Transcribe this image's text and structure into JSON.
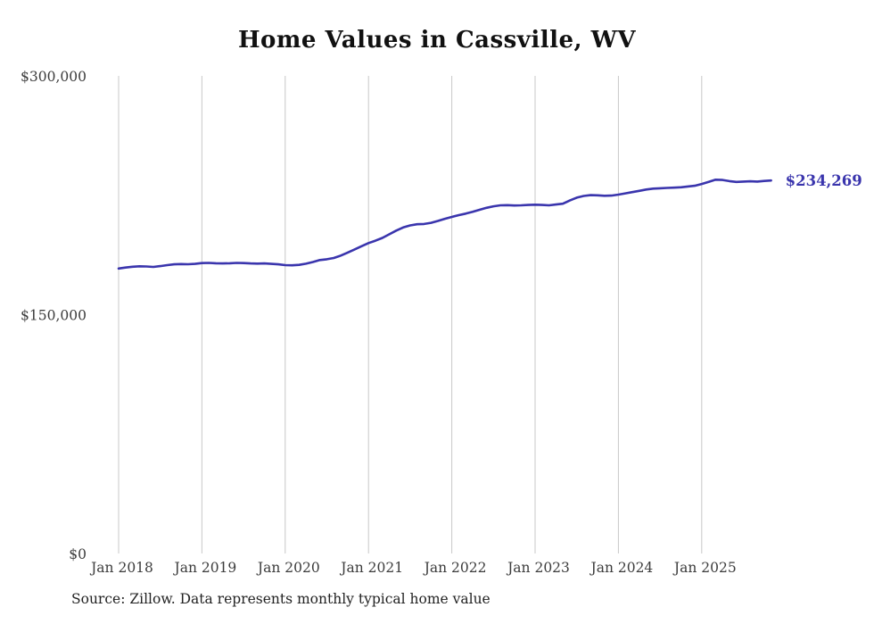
{
  "chart": {
    "title": "Home Values in Cassville, WV",
    "source_note": "Source: Zillow. Data represents monthly typical home value",
    "end_label": "$234,269"
  },
  "chart_data": {
    "type": "line",
    "title": "Home Values in Cassville, WV",
    "series_name": "Monthly typical home value",
    "start_month": "2018-01",
    "x_tick_labels": [
      "Jan 2018",
      "Jan 2019",
      "Jan 2020",
      "Jan 2021",
      "Jan 2022",
      "Jan 2023",
      "Jan 2024",
      "Jan 2025"
    ],
    "y_ticks": [
      {
        "label": "$0",
        "value": 0
      },
      {
        "label": "$150,000",
        "value": 150000
      },
      {
        "label": "$300,000",
        "value": 300000
      }
    ],
    "ylim": [
      0,
      300000
    ],
    "grid": "vertical-only",
    "line_color": "#3a35ad",
    "gridline_color": "#c8c8c8",
    "final_value": 234269,
    "final_value_label": "$234,269",
    "values": [
      179000,
      179600,
      180100,
      180400,
      180300,
      180000,
      180500,
      181100,
      181600,
      181800,
      181700,
      181900,
      182400,
      182500,
      182300,
      182200,
      182300,
      182500,
      182400,
      182200,
      182100,
      182200,
      181900,
      181600,
      181100,
      181000,
      181300,
      182000,
      183100,
      184300,
      184800,
      185600,
      187100,
      189000,
      191000,
      193000,
      195000,
      196500,
      198200,
      200500,
      202800,
      204800,
      206100,
      206800,
      207000,
      207700,
      208900,
      210200,
      211400,
      212500,
      213500,
      214600,
      215900,
      217100,
      218100,
      218700,
      218800,
      218600,
      218700,
      218900,
      219100,
      218900,
      218700,
      219200,
      219700,
      221700,
      223500,
      224600,
      225100,
      225000,
      224700,
      224800,
      225400,
      226200,
      227000,
      227800,
      228600,
      229200,
      229400,
      229600,
      229800,
      230000,
      230500,
      231000,
      232100,
      233400,
      234800,
      234600,
      233900,
      233400,
      233600,
      233800,
      233600,
      234000,
      234269
    ]
  }
}
